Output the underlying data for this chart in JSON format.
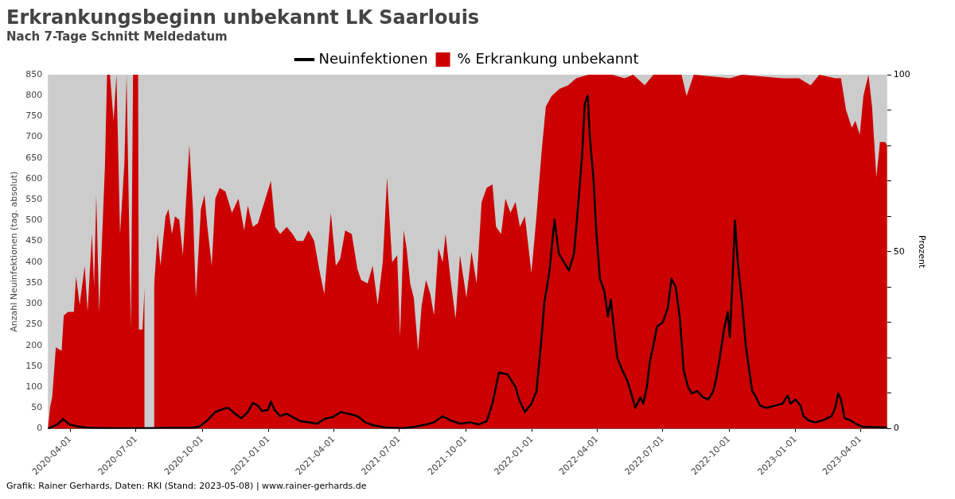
{
  "chart_data": {
    "type": "line",
    "title": "Erkrankungsbeginn unbekannt LK Saarlouis",
    "subtitle": "Nach 7-Tage Schnitt Meldedatum",
    "ylabel": "Anzahl Neuinfektionen (tag. absolut)",
    "y2label": "Prozent",
    "xlim": [
      "2020-03-01",
      "2023-05-08"
    ],
    "xticks": [
      "2020-04-01",
      "2020-07-01",
      "2020-10-01",
      "2021-01-01",
      "2021-04-01",
      "2021-07-01",
      "2021-10-01",
      "2022-01-01",
      "2022-04-01",
      "2022-07-01",
      "2022-10-01",
      "2023-01-01",
      "2023-04-01"
    ],
    "ylim": [
      0,
      850
    ],
    "yticks": [
      0,
      50,
      100,
      150,
      200,
      250,
      300,
      350,
      400,
      450,
      500,
      550,
      600,
      650,
      700,
      750,
      800,
      850
    ],
    "y2lim": [
      0,
      100
    ],
    "y2ticks": [
      0,
      {
        "value": 10,
        "label": null
      },
      {
        "value": 20,
        "label": null
      },
      {
        "value": 30,
        "label": null
      },
      {
        "value": 40,
        "label": null
      },
      50,
      {
        "value": 60,
        "label": null
      },
      {
        "value": 70,
        "label": null
      },
      {
        "value": 80,
        "label": null
      },
      {
        "value": 90,
        "label": null
      },
      100
    ],
    "legend": "top",
    "grid": false,
    "marker": "none",
    "series": [
      {
        "name": "Neuinfektionen",
        "type": "line",
        "color": "#000000",
        "x": [
          "2020-03-01",
          "2020-03-14",
          "2020-03-22",
          "2020-03-31",
          "2020-04-12",
          "2020-04-23",
          "2020-05-04",
          "2020-05-26",
          "2020-07-10",
          "2020-08-13",
          "2020-09-16",
          "2020-09-27",
          "2020-10-08",
          "2020-10-19",
          "2020-10-31",
          "2020-11-06",
          "2020-11-16",
          "2020-11-24",
          "2020-12-03",
          "2020-12-10",
          "2020-12-17",
          "2020-12-23",
          "2020-12-31",
          "2021-01-04",
          "2021-01-09",
          "2021-01-17",
          "2021-01-26",
          "2021-02-03",
          "2021-02-14",
          "2021-02-25",
          "2021-03-09",
          "2021-03-20",
          "2021-03-31",
          "2021-04-11",
          "2021-04-23",
          "2021-05-04",
          "2021-05-15",
          "2021-05-26",
          "2021-06-12",
          "2021-07-05",
          "2021-07-21",
          "2021-08-07",
          "2021-08-18",
          "2021-08-30",
          "2021-09-10",
          "2021-09-23",
          "2021-10-08",
          "2021-10-19",
          "2021-10-30",
          "2021-11-07",
          "2021-11-16",
          "2021-11-28",
          "2021-12-09",
          "2021-12-14",
          "2021-12-22",
          "2021-12-31",
          "2022-01-07",
          "2022-01-14",
          "2022-01-18",
          "2022-01-25",
          "2022-02-01",
          "2022-02-07",
          "2022-02-14",
          "2022-02-21",
          "2022-02-28",
          "2022-03-04",
          "2022-03-11",
          "2022-03-15",
          "2022-03-19",
          "2022-03-22",
          "2022-03-27",
          "2022-03-31",
          "2022-04-05",
          "2022-04-11",
          "2022-04-16",
          "2022-04-20",
          "2022-04-25",
          "2022-04-29",
          "2022-05-06",
          "2022-05-13",
          "2022-05-19",
          "2022-05-24",
          "2022-05-31",
          "2022-06-04",
          "2022-06-09",
          "2022-06-13",
          "2022-06-18",
          "2022-06-23",
          "2022-07-01",
          "2022-07-08",
          "2022-07-13",
          "2022-07-19",
          "2022-07-25",
          "2022-07-30",
          "2022-08-05",
          "2022-08-10",
          "2022-08-18",
          "2022-08-26",
          "2022-09-02",
          "2022-09-09",
          "2022-09-13",
          "2022-09-18",
          "2022-09-24",
          "2022-09-29",
          "2022-10-02",
          "2022-10-06",
          "2022-10-09",
          "2022-10-13",
          "2022-10-19",
          "2022-10-24",
          "2022-10-28",
          "2022-11-02",
          "2022-11-06",
          "2022-11-13",
          "2022-11-22",
          "2022-12-03",
          "2022-12-14",
          "2022-12-21",
          "2022-12-25",
          "2023-01-01",
          "2023-01-08",
          "2023-01-12",
          "2023-01-19",
          "2023-01-28",
          "2023-02-08",
          "2023-02-20",
          "2023-02-25",
          "2023-03-01",
          "2023-03-05",
          "2023-03-10",
          "2023-03-18",
          "2023-03-27",
          "2023-04-05",
          "2023-05-08"
        ],
        "values": [
          0,
          10,
          23,
          10,
          5,
          3,
          2,
          1,
          1,
          2,
          2,
          5,
          20,
          40,
          48,
          50,
          35,
          25,
          40,
          62,
          55,
          42,
          45,
          65,
          45,
          30,
          36,
          28,
          18,
          15,
          12,
          24,
          28,
          40,
          35,
          30,
          15,
          8,
          3,
          1,
          4,
          10,
          15,
          30,
          20,
          12,
          15,
          10,
          18,
          60,
          135,
          130,
          100,
          70,
          40,
          60,
          90,
          217,
          304,
          378,
          502,
          420,
          400,
          380,
          420,
          500,
          650,
          780,
          800,
          700,
          600,
          470,
          360,
          330,
          270,
          310,
          230,
          170,
          140,
          115,
          80,
          50,
          75,
          60,
          100,
          160,
          200,
          245,
          255,
          290,
          360,
          340,
          260,
          140,
          100,
          85,
          90,
          75,
          70,
          90,
          120,
          170,
          240,
          280,
          220,
          370,
          500,
          400,
          300,
          200,
          150,
          90,
          80,
          55,
          50,
          55,
          60,
          80,
          60,
          70,
          55,
          30,
          20,
          15,
          20,
          30,
          50,
          85,
          70,
          25,
          20,
          10,
          4,
          3
        ]
      },
      {
        "name": "% Erkrankung unbekannt",
        "type": "area",
        "axis": "y2",
        "color": "#cc0000",
        "x": [
          "2020-03-01",
          "2020-03-04",
          "2020-03-07",
          "2020-03-12",
          "2020-03-20",
          "2020-03-23",
          "2020-03-29",
          "2020-04-06",
          "2020-04-09",
          "2020-04-14",
          "2020-04-21",
          "2020-04-25",
          "2020-05-01",
          "2020-05-04",
          "2020-05-07",
          "2020-05-11",
          "2020-05-19",
          "2020-05-22",
          "2020-05-26",
          "2020-05-31",
          "2020-06-04",
          "2020-06-09",
          "2020-06-15",
          "2020-06-18",
          "2020-06-24",
          "2020-06-27",
          "2020-07-04",
          "2020-07-05",
          "2020-07-10",
          "2020-07-13",
          "2020-07-15",
          "2020-07-24",
          "2020-07-26",
          "2020-07-31",
          "2020-08-04",
          "2020-08-11",
          "2020-08-15",
          "2020-08-20",
          "2020-08-24",
          "2020-08-30",
          "2020-09-04",
          "2020-09-13",
          "2020-09-18",
          "2020-09-22",
          "2020-09-29",
          "2020-10-04",
          "2020-10-08",
          "2020-10-14",
          "2020-10-19",
          "2020-10-25",
          "2020-11-02",
          "2020-11-11",
          "2020-11-20",
          "2020-11-28",
          "2020-12-03",
          "2020-12-10",
          "2020-12-17",
          "2020-12-26",
          "2021-01-04",
          "2021-01-10",
          "2021-01-17",
          "2021-01-26",
          "2021-02-03",
          "2021-02-09",
          "2021-02-18",
          "2021-02-25",
          "2021-03-05",
          "2021-03-12",
          "2021-03-19",
          "2021-03-28",
          "2021-04-04",
          "2021-04-10",
          "2021-04-17",
          "2021-04-26",
          "2021-05-04",
          "2021-05-09",
          "2021-05-18",
          "2021-05-25",
          "2021-06-01",
          "2021-06-08",
          "2021-06-14",
          "2021-06-21",
          "2021-06-28",
          "2021-07-02",
          "2021-07-07",
          "2021-07-11",
          "2021-07-16",
          "2021-07-21",
          "2021-07-27",
          "2021-08-01",
          "2021-08-07",
          "2021-08-13",
          "2021-08-18",
          "2021-08-24",
          "2021-08-30",
          "2021-09-03",
          "2021-09-10",
          "2021-09-17",
          "2021-09-23",
          "2021-10-02",
          "2021-10-09",
          "2021-10-16",
          "2021-10-23",
          "2021-10-30",
          "2021-11-07",
          "2021-11-12",
          "2021-11-19",
          "2021-11-25",
          "2021-12-02",
          "2021-12-09",
          "2021-12-15",
          "2021-12-22",
          "2021-12-31",
          "2022-01-07",
          "2022-01-14",
          "2022-01-20",
          "2022-01-28",
          "2022-02-08",
          "2022-02-20",
          "2022-03-03",
          "2022-03-20",
          "2022-04-22",
          "2022-05-09",
          "2022-05-21",
          "2022-06-06",
          "2022-06-18",
          "2022-07-27",
          "2022-08-03",
          "2022-08-13",
          "2022-10-02",
          "2022-10-19",
          "2022-12-14",
          "2023-01-06",
          "2023-01-22",
          "2023-02-03",
          "2023-02-25",
          "2023-03-05",
          "2023-03-12",
          "2023-03-20",
          "2023-03-25",
          "2023-03-31",
          "2023-04-05",
          "2023-04-12",
          "2023-04-17",
          "2023-04-23",
          "2023-04-28",
          "2023-05-05",
          "2023-05-08"
        ],
        "values": [
          0,
          6,
          9,
          23,
          22,
          32,
          33,
          33,
          43,
          35,
          46,
          33,
          55,
          40,
          66,
          33,
          74,
          100,
          100,
          87,
          100,
          55,
          75,
          100,
          28,
          100,
          100,
          28,
          28,
          40,
          null,
          null,
          40,
          55,
          46,
          60,
          62,
          55,
          60,
          59,
          49,
          80,
          62,
          37,
          62,
          66,
          57,
          46,
          65,
          68,
          67,
          61,
          65,
          56,
          63,
          57,
          58,
          64,
          70,
          57,
          55,
          57,
          55,
          53,
          53,
          56,
          53,
          45,
          38,
          61,
          46,
          48,
          56,
          55,
          45,
          42,
          41,
          46,
          35,
          47,
          71,
          47,
          49,
          26,
          56,
          51,
          41,
          37,
          22,
          35,
          42,
          38,
          32,
          51,
          47,
          55,
          42,
          31,
          49,
          37,
          50,
          41,
          64,
          68,
          69,
          57,
          55,
          65,
          61,
          64,
          57,
          60,
          44,
          60,
          78,
          91,
          94,
          96,
          97,
          99,
          100,
          100,
          99,
          100,
          97,
          100,
          100,
          94,
          100,
          99,
          100,
          99,
          99,
          97,
          100,
          99,
          99,
          90,
          85,
          87,
          83,
          94,
          100,
          91,
          71,
          81,
          81,
          80
        ]
      }
    ],
    "annotations": [
      "Grafik: Rainer Gerhards, Daten: RKI (Stand: 2023-05-08) | www.rainer-gerhards.de"
    ]
  }
}
